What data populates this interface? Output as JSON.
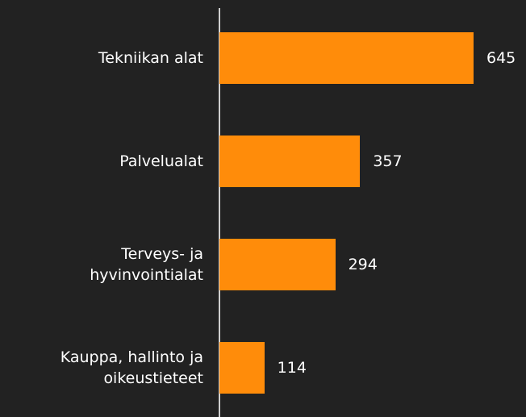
{
  "chart_data": {
    "type": "bar",
    "orientation": "horizontal",
    "categories": [
      "Tekniikan alat",
      "Palvelualat",
      "Terveys- ja\nhyvinvointialat",
      "Kauppa, hallinto ja\noikeustieteet"
    ],
    "values": [
      645,
      357,
      294,
      114
    ],
    "color": "#ff8c0a"
  }
}
